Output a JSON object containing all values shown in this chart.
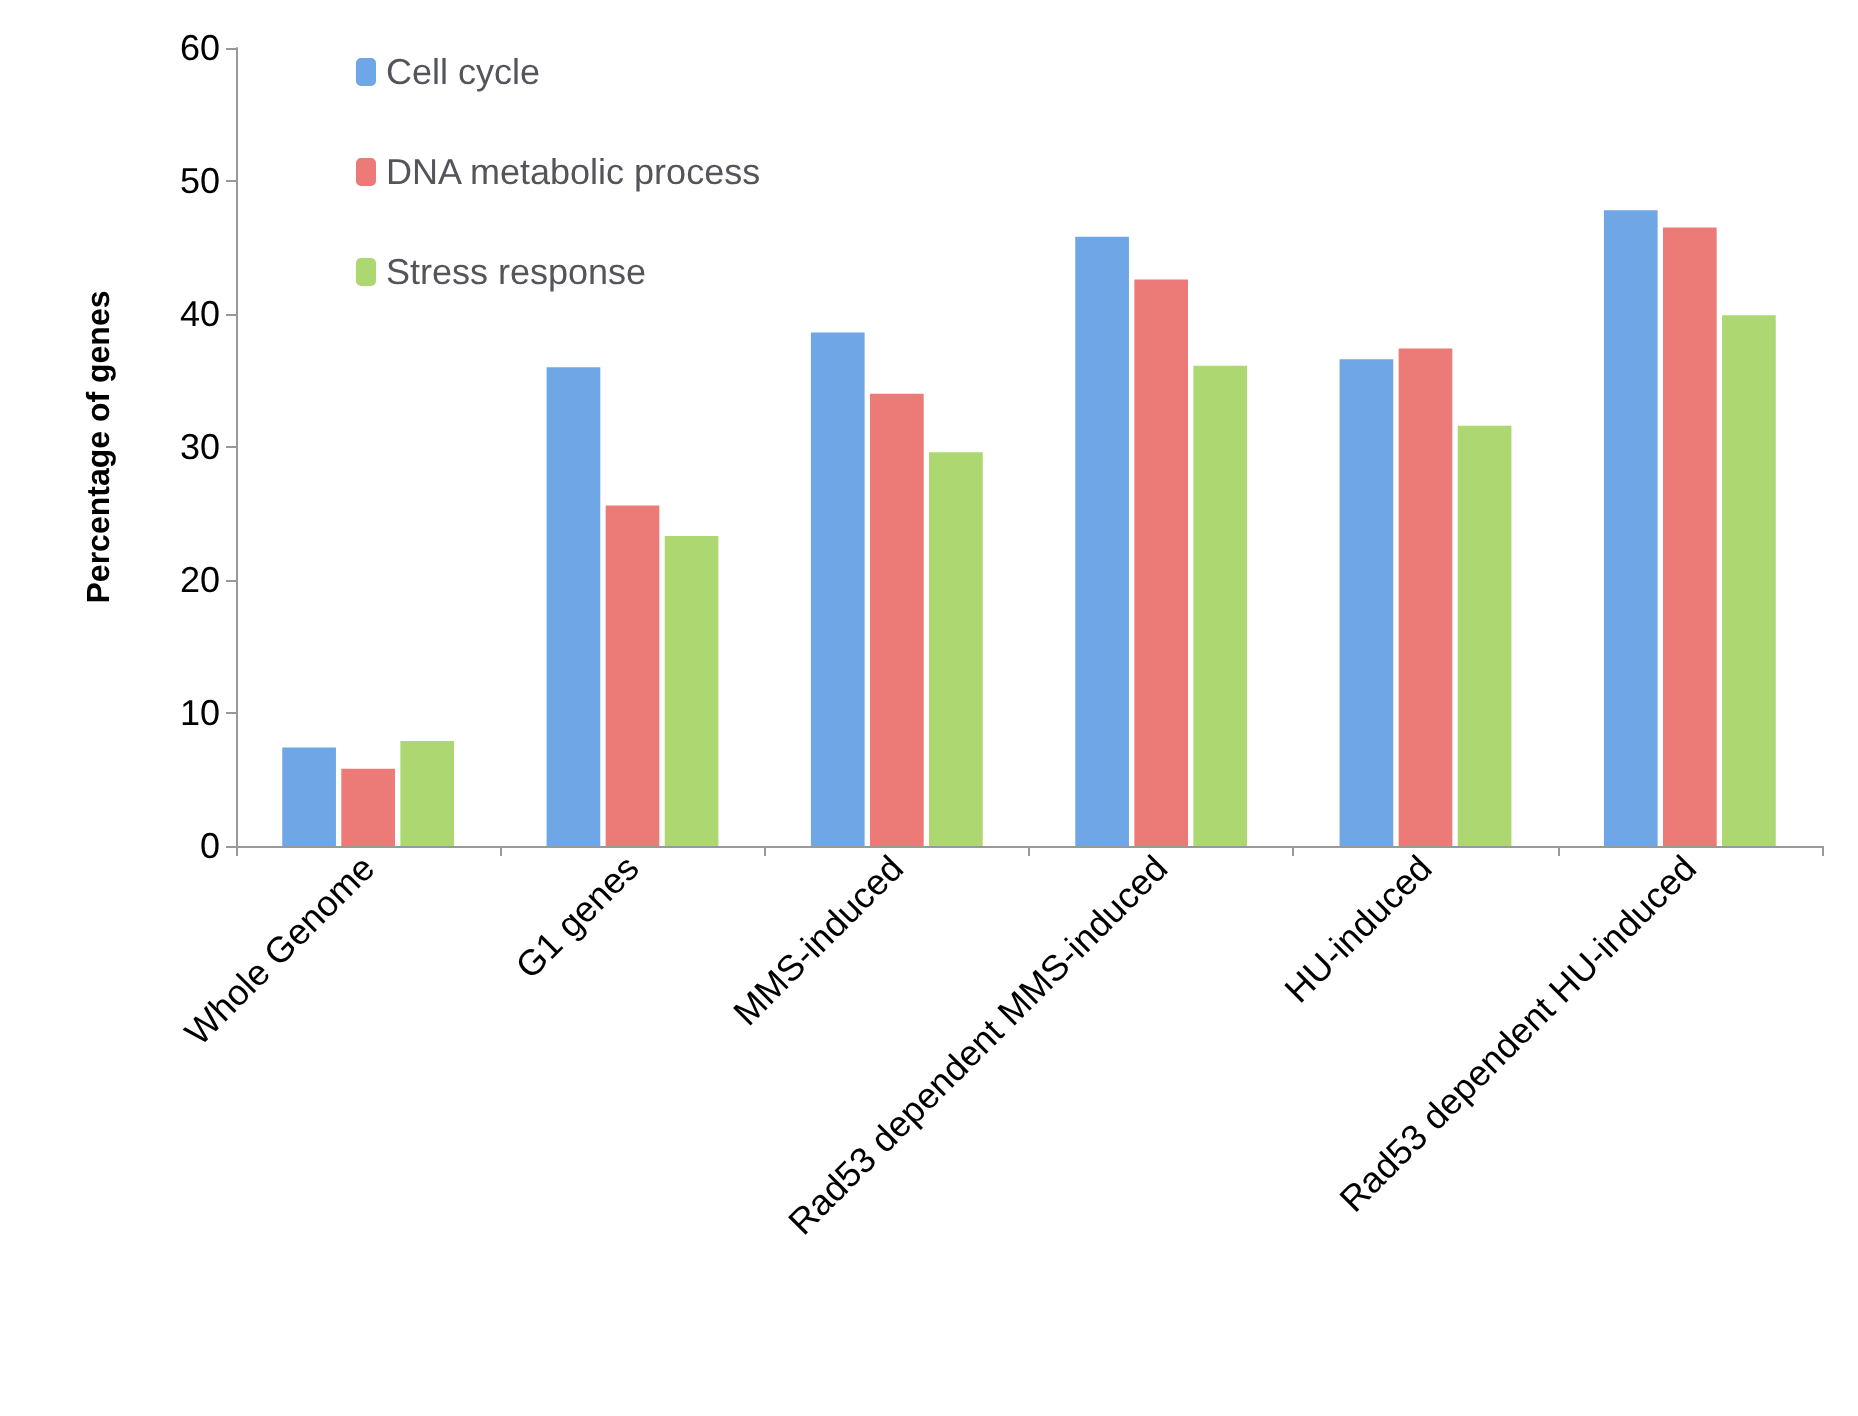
{
  "chart_data": {
    "type": "bar",
    "ylabel": "Percentage of genes",
    "categories": [
      "Whole Genome",
      "G1 genes",
      "MMS-induced",
      "Rad53 dependent MMS-induced",
      "HU-induced",
      "Rad53 dependent HU-induced"
    ],
    "series": [
      {
        "name": "Cell cycle",
        "color": "#6fa6e6",
        "values": [
          7.4,
          36,
          38.6,
          45.8,
          36.6,
          47.8
        ]
      },
      {
        "name": "DNA metabolic process",
        "color": "#ec7a76",
        "values": [
          5.8,
          25.6,
          34,
          42.6,
          37.4,
          46.5
        ]
      },
      {
        "name": "Stress response",
        "color": "#add770",
        "values": [
          7.9,
          23.3,
          29.6,
          36.1,
          31.6,
          39.9
        ]
      }
    ],
    "ylim": [
      0,
      60
    ],
    "yticks": [
      0,
      10,
      20,
      30,
      40,
      50,
      60
    ],
    "grid": false,
    "legend": "top left"
  }
}
